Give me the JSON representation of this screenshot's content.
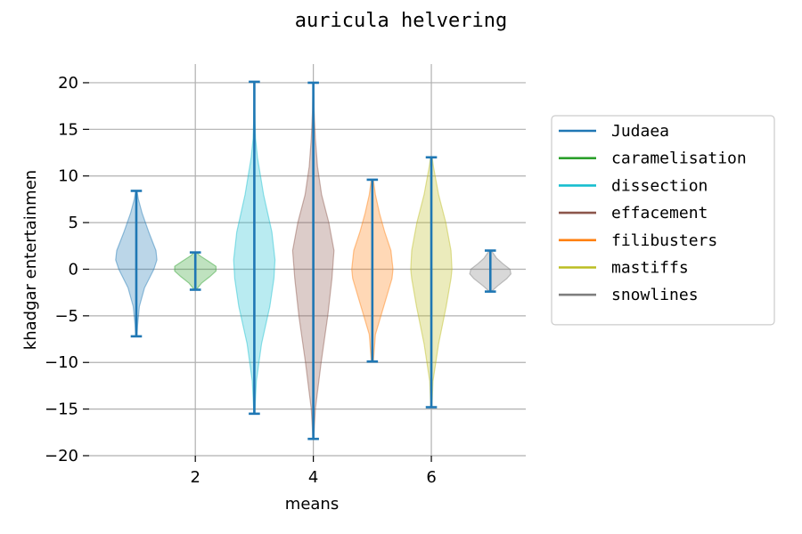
{
  "chart_data": {
    "type": "violin",
    "title": "auricula helvering",
    "xlabel": "means",
    "ylabel": "khadgar entertainmen",
    "xlim": [
      0.2,
      7.6
    ],
    "ylim": [
      -20,
      22
    ],
    "x_ticks": [
      2,
      4,
      6
    ],
    "y_ticks": [
      -20,
      -15,
      -10,
      -5,
      0,
      5,
      10,
      15,
      20
    ],
    "grid": true,
    "legend_position": "right",
    "extrema_line_color": "#1f77b4",
    "series": [
      {
        "name": "Judaea",
        "position": 1,
        "min": -7.2,
        "max": 8.4,
        "color": "#1f77b4",
        "density": [
          [
            -7.2,
            0.03
          ],
          [
            -6,
            0.06
          ],
          [
            -4,
            0.15
          ],
          [
            -2,
            0.4
          ],
          [
            0,
            0.85
          ],
          [
            1,
            1.0
          ],
          [
            2,
            0.95
          ],
          [
            4,
            0.6
          ],
          [
            6,
            0.28
          ],
          [
            7.5,
            0.1
          ],
          [
            8.4,
            0.03
          ]
        ]
      },
      {
        "name": "caramelisation",
        "position": 2,
        "min": -2.2,
        "max": 1.8,
        "color": "#2ca02c",
        "density": [
          [
            -2.2,
            0.05
          ],
          [
            -1.5,
            0.3
          ],
          [
            -0.8,
            0.7
          ],
          [
            -0.2,
            1.0
          ],
          [
            0.3,
            1.0
          ],
          [
            0.9,
            0.6
          ],
          [
            1.4,
            0.25
          ],
          [
            1.8,
            0.05
          ]
        ]
      },
      {
        "name": "dissection",
        "position": 3,
        "min": -15.5,
        "max": 20.1,
        "color": "#17becf",
        "density": [
          [
            -15.5,
            0.02
          ],
          [
            -12,
            0.1
          ],
          [
            -8,
            0.35
          ],
          [
            -4,
            0.75
          ],
          [
            -1,
            0.95
          ],
          [
            1,
            1.0
          ],
          [
            4,
            0.85
          ],
          [
            8,
            0.45
          ],
          [
            12,
            0.15
          ],
          [
            14,
            0.06
          ],
          [
            16,
            0.03
          ],
          [
            18,
            0.015
          ],
          [
            20.1,
            0.01
          ]
        ]
      },
      {
        "name": "effacement",
        "position": 4,
        "min": -18.2,
        "max": 20.0,
        "color": "#8c564b",
        "density": [
          [
            -18.2,
            0.02
          ],
          [
            -15,
            0.1
          ],
          [
            -10,
            0.38
          ],
          [
            -5,
            0.7
          ],
          [
            -1,
            0.9
          ],
          [
            2,
            1.0
          ],
          [
            5,
            0.75
          ],
          [
            8,
            0.4
          ],
          [
            11,
            0.2
          ],
          [
            14,
            0.1
          ],
          [
            17,
            0.04
          ],
          [
            20,
            0.01
          ]
        ]
      },
      {
        "name": "filibusters",
        "position": 5,
        "min": -9.9,
        "max": 9.6,
        "color": "#ff7f0e",
        "density": [
          [
            -9.9,
            0.05
          ],
          [
            -7,
            0.15
          ],
          [
            -4,
            0.55
          ],
          [
            -1,
            0.95
          ],
          [
            0,
            1.0
          ],
          [
            2,
            0.9
          ],
          [
            4,
            0.6
          ],
          [
            6,
            0.35
          ],
          [
            8,
            0.15
          ],
          [
            9.6,
            0.05
          ]
        ]
      },
      {
        "name": "mastiffs",
        "position": 6,
        "min": -14.8,
        "max": 12.0,
        "color": "#bcbd22",
        "density": [
          [
            -14.8,
            0.03
          ],
          [
            -12,
            0.08
          ],
          [
            -8,
            0.35
          ],
          [
            -4,
            0.72
          ],
          [
            -1,
            0.95
          ],
          [
            0,
            1.0
          ],
          [
            2,
            0.95
          ],
          [
            5,
            0.7
          ],
          [
            8,
            0.35
          ],
          [
            11,
            0.1
          ],
          [
            12,
            0.04
          ]
        ]
      },
      {
        "name": "snowlines",
        "position": 7,
        "min": -2.4,
        "max": 2.0,
        "color": "#7f7f7f",
        "density": [
          [
            -2.4,
            0.05
          ],
          [
            -1.8,
            0.35
          ],
          [
            -1.0,
            0.8
          ],
          [
            -0.5,
            1.0
          ],
          [
            0,
            0.95
          ],
          [
            0.6,
            0.6
          ],
          [
            1.2,
            0.3
          ],
          [
            2.0,
            0.05
          ]
        ]
      }
    ]
  }
}
